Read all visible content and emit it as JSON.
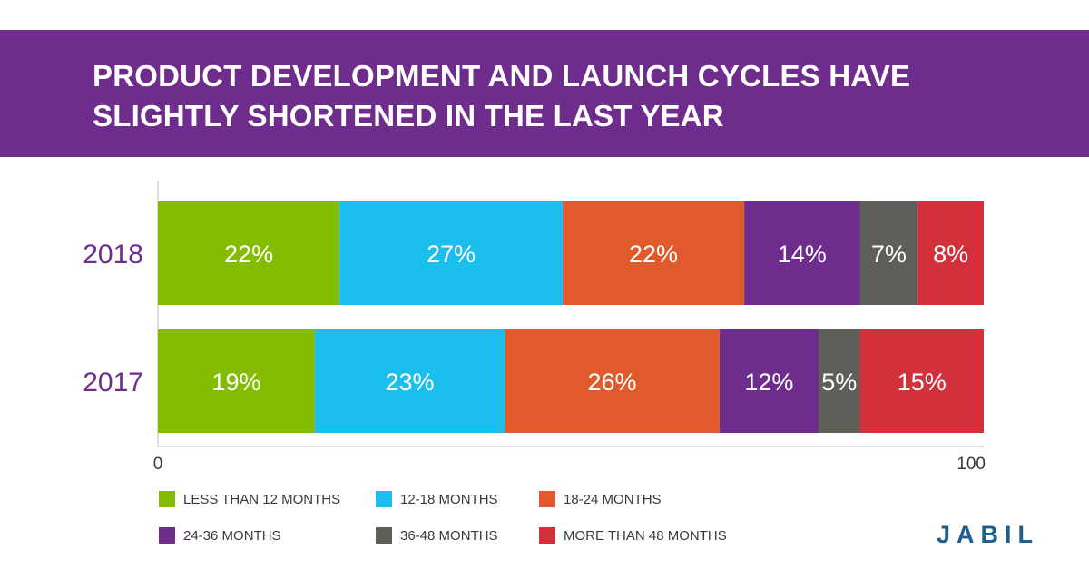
{
  "title": "PRODUCT DEVELOPMENT AND LAUNCH CYCLES HAVE SLIGHTLY SHORTENED IN THE LAST YEAR",
  "colors": {
    "title_band": "#6e2d8c",
    "year_label": "#6e2d8c",
    "logo": "#1f5f8b",
    "logo_accent": "#8cbf1a"
  },
  "logo_text": "JABIL",
  "chart_data": {
    "type": "bar",
    "orientation": "horizontal",
    "stacked": true,
    "categories": [
      "2018",
      "2017"
    ],
    "series": [
      {
        "name": "LESS THAN 12 MONTHS",
        "color": "#84bd00",
        "values": [
          22,
          19
        ],
        "labels": [
          "22%",
          "19%"
        ]
      },
      {
        "name": "12-18 MONTHS",
        "color": "#1bbfee",
        "values": [
          27,
          23
        ],
        "labels": [
          "27%",
          "23%"
        ]
      },
      {
        "name": "18-24 MONTHS",
        "color": "#e05a2b",
        "values": [
          22,
          26
        ],
        "labels": [
          "22%",
          "26%"
        ]
      },
      {
        "name": "24-36 MONTHS",
        "color": "#6e2d8c",
        "values": [
          14,
          12
        ],
        "labels": [
          "14%",
          "12%"
        ]
      },
      {
        "name": "36-48 MONTHS",
        "color": "#5f5f5a",
        "values": [
          7,
          5
        ],
        "labels": [
          "7%",
          "5%"
        ]
      },
      {
        "name": "MORE THAN 48 MONTHS",
        "color": "#d2303a",
        "values": [
          8,
          15
        ],
        "labels": [
          "8%",
          "15%"
        ]
      }
    ],
    "xlim": [
      0,
      100
    ],
    "x_ticks": [
      "0",
      "100"
    ],
    "grid": false,
    "legend_position": "bottom"
  }
}
